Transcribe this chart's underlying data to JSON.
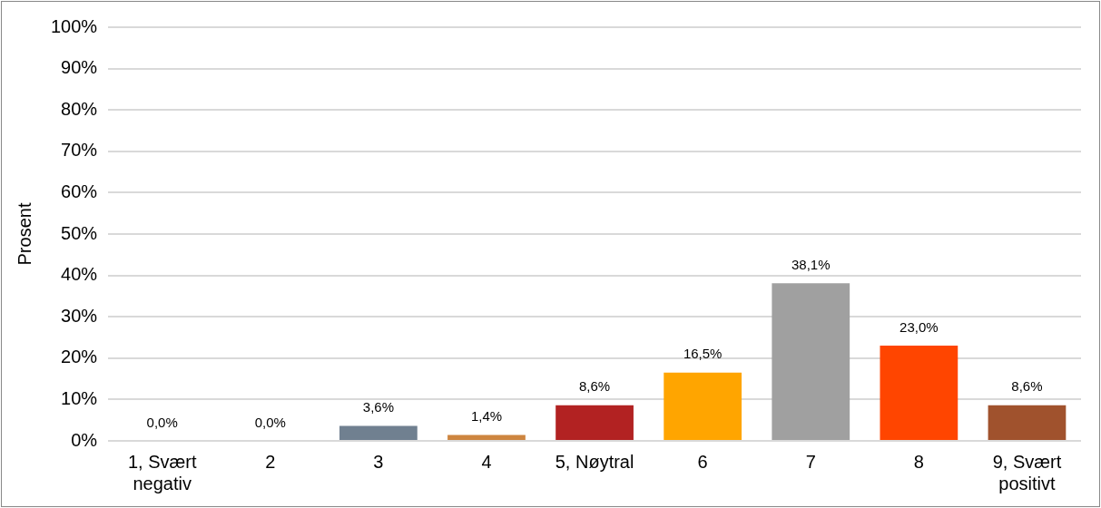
{
  "chart_data": {
    "type": "bar",
    "ylabel": "Prosent",
    "categories": [
      "1, Svært negativ",
      "2",
      "3",
      "4",
      "5, Nøytral",
      "6",
      "7",
      "8",
      "9, Svært positivt"
    ],
    "values": [
      0.0,
      0.0,
      3.6,
      1.4,
      8.6,
      16.5,
      38.1,
      23.0,
      8.6
    ],
    "colors": [
      "#708090",
      "#708090",
      "#708090",
      "#cd853f",
      "#b22222",
      "#ffa500",
      "#a0a0a0",
      "#ff4500",
      "#a0522d"
    ],
    "value_labels": [
      "0,0%",
      "0,0%",
      "3,6%",
      "1,4%",
      "8,6%",
      "16,5%",
      "38,1%",
      "23,0%",
      "8,6%"
    ],
    "ylim": [
      0,
      100
    ],
    "yticks": [
      {
        "value": 0,
        "label": "0%"
      },
      {
        "value": 10,
        "label": "10%"
      },
      {
        "value": 20,
        "label": "20%"
      },
      {
        "value": 30,
        "label": "30%"
      },
      {
        "value": 40,
        "label": "40%"
      },
      {
        "value": 50,
        "label": "50%"
      },
      {
        "value": 60,
        "label": "60%"
      },
      {
        "value": 70,
        "label": "70%"
      },
      {
        "value": 80,
        "label": "80%"
      },
      {
        "value": 90,
        "label": "90%"
      },
      {
        "value": 100,
        "label": "100%"
      }
    ],
    "grid": "y",
    "legend": false
  }
}
